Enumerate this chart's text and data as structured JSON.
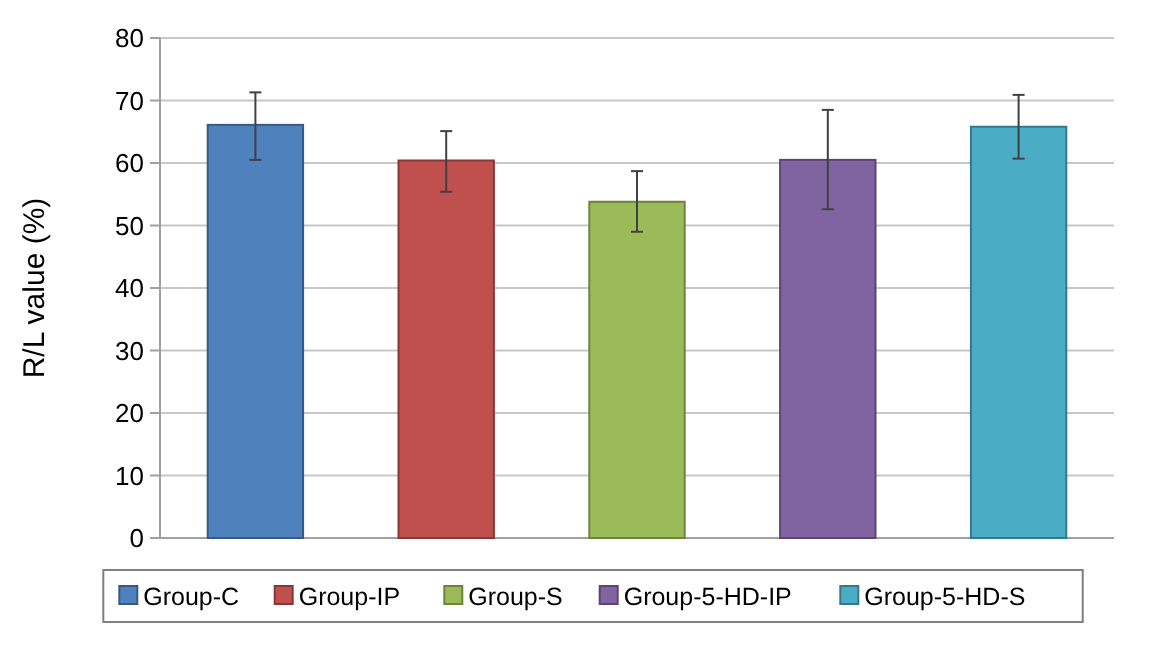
{
  "chart_data": {
    "type": "bar",
    "ylabel": "R/L value (%)",
    "categories": [
      null
    ],
    "series": [
      {
        "name": "Group-C",
        "color": "#4f81bd",
        "values": [
          66.1
        ],
        "errors": [
          [
            60.5,
            71.3
          ]
        ]
      },
      {
        "name": "Group-IP",
        "color": "#c0504d",
        "values": [
          60.4
        ],
        "errors": [
          [
            55.4,
            65.1
          ]
        ]
      },
      {
        "name": "Group-S",
        "color": "#9bbb59",
        "values": [
          53.8
        ],
        "errors": [
          [
            49,
            58.7
          ]
        ]
      },
      {
        "name": "Group-5-HD-IP",
        "color": "#8064a2",
        "values": [
          60.5
        ],
        "errors": [
          [
            52.6,
            68.5
          ]
        ]
      },
      {
        "name": "Group-5-HD-S",
        "color": "#4bacc6",
        "values": [
          65.8
        ],
        "errors": [
          [
            60.7,
            70.9
          ]
        ]
      }
    ],
    "ylim": [
      0,
      80
    ],
    "yticks": [
      0,
      10,
      20,
      30,
      40,
      50,
      60,
      70,
      80
    ],
    "grid": "y",
    "legend": "bottom"
  }
}
